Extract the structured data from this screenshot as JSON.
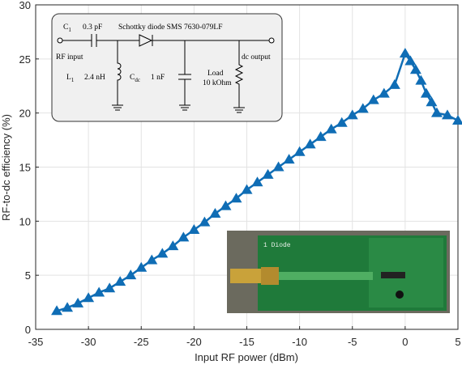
{
  "chart_data": {
    "type": "line",
    "xlabel": "Input RF power (dBm)",
    "ylabel": "RF-to-dc efficiency (%)",
    "x": [
      -33,
      -32,
      -31,
      -30,
      -29,
      -28,
      -27,
      -26,
      -25,
      -24,
      -23,
      -22,
      -21,
      -20,
      -19,
      -18,
      -17,
      -16,
      -15,
      -14,
      -13,
      -12,
      -11,
      -10,
      -9,
      -8,
      -7,
      -6,
      -5,
      -4,
      -3,
      -2,
      -1,
      0,
      0.5,
      1,
      1.5,
      2,
      2.5,
      3,
      4,
      5
    ],
    "series": [
      {
        "name": "RF-to-dc efficiency",
        "color": "#0f6db5",
        "values": [
          1.7,
          2.0,
          2.4,
          2.9,
          3.4,
          3.8,
          4.4,
          5.0,
          5.7,
          6.4,
          7.0,
          7.7,
          8.5,
          9.2,
          9.9,
          10.7,
          11.4,
          12.1,
          12.9,
          13.6,
          14.3,
          15.0,
          15.7,
          16.4,
          17.1,
          17.8,
          18.5,
          19.1,
          19.8,
          20.4,
          21.2,
          21.8,
          22.6,
          25.5,
          24.8,
          24.0,
          23.0,
          21.8,
          21.0,
          20.0,
          19.8,
          19.3
        ]
      }
    ],
    "xlim": [
      -35,
      5
    ],
    "xticks": [
      -35,
      -30,
      -25,
      -20,
      -15,
      -10,
      -5,
      0,
      5
    ],
    "ylim": [
      0,
      30
    ],
    "yticks": [
      0,
      5,
      10,
      15,
      20,
      25,
      30
    ],
    "grid": true
  },
  "inset_circuit": {
    "c1": {
      "main": "C",
      "sub": "1"
    },
    "c1_value": "0.3 pF",
    "diode": "Schottky diode SMS 7630-079LF",
    "rf_input": "RF input",
    "l1": {
      "main": "L",
      "sub": "1"
    },
    "l1_value": "2.4 nH",
    "cdc": {
      "main": "C",
      "sub": "dc"
    },
    "cdc_value": "1 nF",
    "load": "Load",
    "load_value": "10 kOhm",
    "dc_output": "dc output"
  },
  "inset_photo": {
    "label": "1 Diode"
  }
}
